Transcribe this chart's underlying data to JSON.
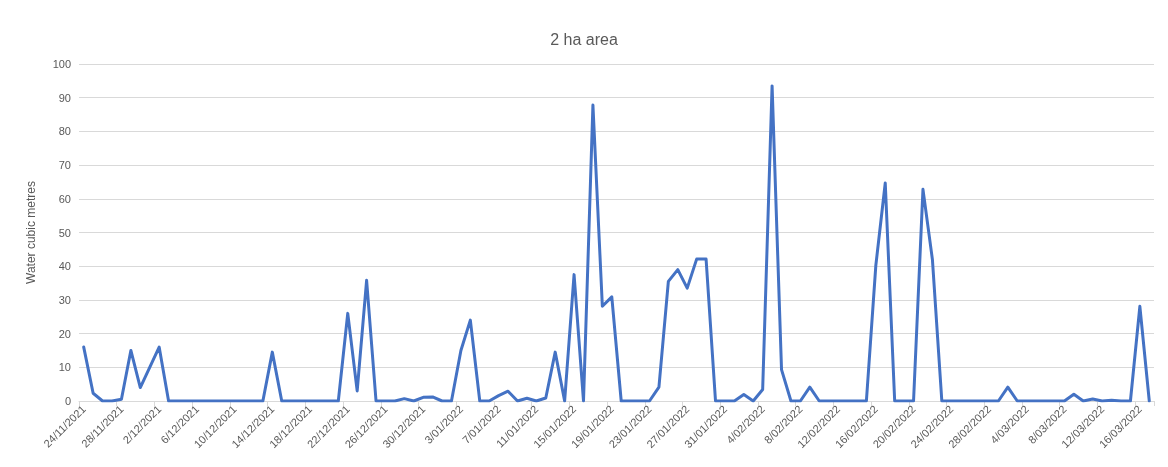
{
  "chart_data": {
    "type": "line",
    "title": "2 ha area",
    "ylabel": "Water cubic metres",
    "categories": [
      "24/11/2021",
      null,
      null,
      null,
      "28/11/2021",
      null,
      null,
      null,
      "2/12/2021",
      null,
      null,
      null,
      "6/12/2021",
      null,
      null,
      null,
      "10/12/2021",
      null,
      null,
      null,
      "14/12/2021",
      null,
      null,
      null,
      "18/12/2021",
      null,
      null,
      null,
      "22/12/2021",
      null,
      null,
      null,
      "26/12/2021",
      null,
      null,
      null,
      "30/12/2021",
      null,
      null,
      null,
      "3/01/2022",
      null,
      null,
      null,
      "7/01/2022",
      null,
      null,
      null,
      "11/01/2022",
      null,
      null,
      null,
      "15/01/2022",
      null,
      null,
      null,
      "19/01/2022",
      null,
      null,
      null,
      "23/01/2022",
      null,
      null,
      null,
      "27/01/2022",
      null,
      null,
      null,
      "31/01/2022",
      null,
      null,
      null,
      "4/02/2022",
      null,
      null,
      null,
      "8/02/2022",
      null,
      null,
      null,
      "12/02/2022",
      null,
      null,
      null,
      "16/02/2022",
      null,
      null,
      null,
      "20/02/2022",
      null,
      null,
      null,
      "24/02/2022",
      null,
      null,
      null,
      "28/02/2022",
      null,
      null,
      null,
      "4/03/2022",
      null,
      null,
      null,
      "8/03/2022",
      null,
      null,
      null,
      "12/03/2022",
      null,
      null,
      null,
      "16/03/2022",
      null
    ],
    "series": [
      {
        "color": "#4472c4",
        "values": [
          16,
          2.3,
          0,
          0,
          0.5,
          15,
          4,
          10,
          16,
          0,
          0,
          0,
          0,
          0,
          0,
          0,
          0,
          0,
          0,
          0,
          14.5,
          0,
          0,
          0,
          0,
          0,
          0,
          0,
          26,
          3,
          35.8,
          0,
          0,
          0,
          0.7,
          0,
          1.1,
          1.2,
          0,
          0,
          15,
          24,
          0,
          0,
          1.6,
          2.9,
          0,
          0.8,
          0,
          0.9,
          14.5,
          0,
          37.5,
          0,
          87.8,
          28.1,
          30.9,
          0,
          0,
          0,
          0,
          4.1,
          35.5,
          39,
          33.5,
          42.1,
          42.1,
          0,
          0,
          0,
          1.9,
          0,
          3.4,
          93.5,
          9.3,
          0,
          0,
          4.1,
          0,
          0,
          0,
          0,
          0,
          0,
          40.2,
          64.7,
          0,
          0,
          0,
          62.8,
          42,
          0,
          0,
          0,
          0,
          0,
          0,
          0,
          4.1,
          0,
          0,
          0,
          0,
          0,
          0,
          2,
          0,
          0.6,
          0,
          0.2,
          0,
          0,
          28.1,
          0
        ]
      }
    ],
    "ylim": [
      0,
      100
    ],
    "yticks": [
      0,
      10,
      20,
      30,
      40,
      50,
      60,
      70,
      80,
      90,
      100
    ],
    "grid": "y",
    "marker": "none",
    "line_style": "solid"
  }
}
